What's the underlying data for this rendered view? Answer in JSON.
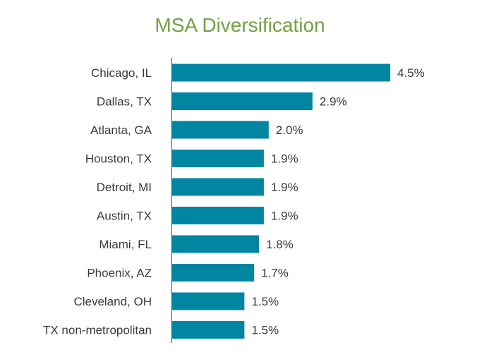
{
  "chart_data": {
    "type": "bar",
    "orientation": "horizontal",
    "title": "MSA Diversification",
    "categories": [
      "Chicago, IL",
      "Dallas, TX",
      "Atlanta, GA",
      "Houston, TX",
      "Detroit, MI",
      "Austin, TX",
      "Miami, FL",
      "Phoenix, AZ",
      "Cleveland, OH",
      "TX non-metropolitan"
    ],
    "values": [
      4.5,
      2.9,
      2.0,
      1.9,
      1.9,
      1.9,
      1.8,
      1.7,
      1.5,
      1.5
    ],
    "value_labels": [
      "4.5%",
      "2.9%",
      "2.0%",
      "1.9%",
      "1.9%",
      "1.9%",
      "1.8%",
      "1.7%",
      "1.5%",
      "1.5%"
    ],
    "xlim": [
      0,
      4.5
    ],
    "grid": false,
    "legend": "none",
    "bar_color": "#0086a1",
    "title_color": "#72a043"
  }
}
